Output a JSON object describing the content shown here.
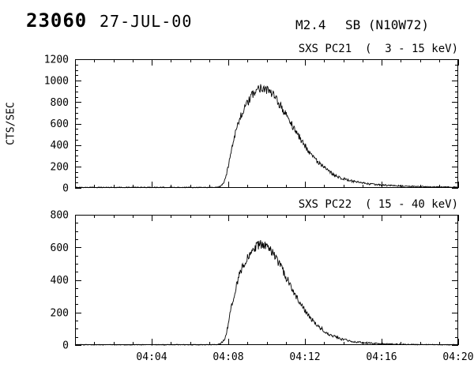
{
  "header": {
    "event_id": "23060",
    "date": "27-JUL-00",
    "goes_class": "M2.4",
    "flare_info": "SB (N10W72)"
  },
  "axis": {
    "x_base_time": "04:00",
    "x_range_minutes": [
      0,
      20
    ],
    "xtick_minutes": [
      4,
      8,
      12,
      16,
      20
    ],
    "xtick_labels": [
      "04:04",
      "04:08",
      "04:12",
      "04:16",
      "04:20"
    ]
  },
  "chart_data": [
    {
      "type": "line",
      "instrument": "SXS PC21",
      "energy_band": "3 - 15 keV",
      "title": "SXS PC21  (  3 - 15 keV)",
      "ylabel": "CTS/SEC",
      "ylim": [
        0,
        1200
      ],
      "ytick_step": 200,
      "ytick_labels": [
        "0",
        "200",
        "400",
        "600",
        "800",
        "1000",
        "1200"
      ],
      "peak_cts_per_sec": 940,
      "peak_time": "04:09:42",
      "noise_k": 1.4,
      "show_x_labels": false,
      "x_minutes": [
        0,
        6,
        7,
        7.4,
        7.6,
        7.8,
        7.9,
        8.0,
        8.1,
        8.2,
        8.3,
        8.4,
        8.5,
        8.6,
        8.7,
        8.8,
        9.0,
        9.2,
        9.4,
        9.6,
        9.8,
        10.0,
        10.2,
        10.4,
        10.6,
        10.8,
        11.0,
        11.2,
        11.4,
        11.6,
        11.8,
        12.0,
        12.2,
        12.4,
        12.6,
        12.8,
        13.0,
        13.2,
        13.4,
        13.6,
        13.8,
        14.0,
        14.3,
        14.6,
        15.0,
        15.5,
        16.0,
        16.5,
        17.0,
        17.5,
        18.0,
        18.5,
        19.0,
        19.5,
        20.0
      ],
      "y_cts_per_sec": [
        5,
        5,
        5,
        6,
        15,
        60,
        120,
        210,
        300,
        390,
        470,
        540,
        595,
        645,
        690,
        725,
        790,
        850,
        900,
        930,
        940,
        920,
        890,
        850,
        800,
        745,
        685,
        625,
        565,
        505,
        448,
        395,
        345,
        298,
        257,
        220,
        188,
        160,
        137,
        117,
        100,
        86,
        70,
        57,
        45,
        34,
        27,
        22,
        18,
        15,
        12,
        10,
        9,
        8,
        7
      ]
    },
    {
      "type": "line",
      "instrument": "SXS PC22",
      "energy_band": "15 - 40 keV",
      "title": "SXS PC22  ( 15 - 40 keV)",
      "ylabel": "",
      "ylim": [
        0,
        800
      ],
      "ytick_step": 200,
      "ytick_labels": [
        "0",
        "200",
        "400",
        "600",
        "800"
      ],
      "peak_cts_per_sec": 620,
      "peak_time": "04:09:48",
      "noise_k": 1.2,
      "show_x_labels": true,
      "x_minutes": [
        0,
        6,
        7,
        7.4,
        7.6,
        7.8,
        7.9,
        8.0,
        8.1,
        8.2,
        8.3,
        8.4,
        8.5,
        8.6,
        8.7,
        8.8,
        9.0,
        9.2,
        9.4,
        9.6,
        9.8,
        10.0,
        10.2,
        10.4,
        10.6,
        10.8,
        11.0,
        11.2,
        11.4,
        11.6,
        11.8,
        12.0,
        12.2,
        12.4,
        12.6,
        12.8,
        13.0,
        13.2,
        13.4,
        13.6,
        13.8,
        14.0,
        14.3,
        14.6,
        15.0,
        15.5,
        16.0,
        16.5,
        17.0,
        17.5,
        18.0,
        18.5,
        19.0,
        19.5,
        20.0
      ],
      "y_cts_per_sec": [
        2,
        2,
        2,
        3,
        8,
        35,
        75,
        130,
        195,
        255,
        310,
        360,
        400,
        435,
        465,
        490,
        530,
        565,
        595,
        615,
        620,
        605,
        580,
        548,
        508,
        465,
        420,
        375,
        330,
        288,
        248,
        212,
        180,
        152,
        127,
        106,
        88,
        73,
        60,
        50,
        41,
        34,
        26,
        20,
        15,
        11,
        8,
        6,
        5,
        4,
        3,
        3,
        2,
        2,
        2
      ]
    }
  ]
}
